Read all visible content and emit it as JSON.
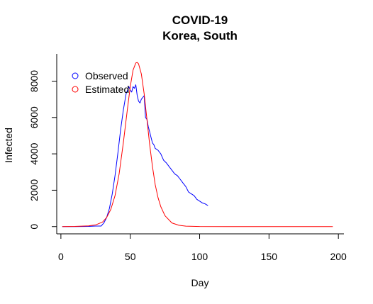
{
  "chart_data": {
    "type": "line",
    "title": "COVID-19",
    "subtitle": "Korea, South",
    "xlabel": "Day",
    "ylabel": "Infected",
    "xlim": [
      -3,
      204
    ],
    "ylim": [
      -400,
      9500
    ],
    "x_ticks": [
      0,
      50,
      100,
      150,
      200
    ],
    "y_ticks": [
      0,
      2000,
      4000,
      6000,
      8000
    ],
    "grid": false,
    "legend_position": "top-left",
    "series": [
      {
        "name": "Observed",
        "color": "#0000ff",
        "x": [
          1,
          10,
          20,
          25,
          29,
          31,
          33,
          35,
          37,
          39,
          41,
          43,
          45,
          47,
          49,
          50,
          51,
          52,
          53,
          54,
          55,
          56,
          57,
          58,
          59,
          60,
          61,
          62,
          63,
          64,
          65,
          66,
          67,
          68,
          69,
          70,
          72,
          74,
          76,
          78,
          80,
          82,
          84,
          86,
          88,
          90,
          92,
          94,
          96,
          98,
          100,
          102,
          104,
          106
        ],
        "y": [
          0,
          0,
          10,
          30,
          30,
          200,
          500,
          1000,
          1800,
          2800,
          4000,
          5300,
          6400,
          7300,
          7700,
          7500,
          7400,
          7700,
          7600,
          7800,
          7200,
          6900,
          6800,
          7000,
          7100,
          7200,
          6000,
          5900,
          5500,
          5200,
          4900,
          4600,
          4500,
          4300,
          4250,
          4200,
          4000,
          3650,
          3500,
          3300,
          3100,
          2900,
          2800,
          2600,
          2400,
          2200,
          1900,
          1800,
          1700,
          1500,
          1400,
          1300,
          1250,
          1150
        ]
      },
      {
        "name": "Estimated",
        "color": "#ff0000",
        "x": [
          1,
          10,
          20,
          25,
          30,
          33,
          36,
          39,
          42,
          45,
          48,
          50,
          52,
          54,
          55,
          56,
          58,
          60,
          62,
          64,
          66,
          68,
          70,
          72,
          75,
          80,
          85,
          90,
          100,
          120,
          150,
          196
        ],
        "y": [
          0,
          10,
          40,
          90,
          250,
          500,
          950,
          1700,
          2900,
          4600,
          6500,
          7700,
          8600,
          9000,
          9030,
          8950,
          8400,
          7300,
          5900,
          4500,
          3300,
          2300,
          1600,
          1100,
          600,
          200,
          70,
          25,
          5,
          0,
          0,
          0
        ]
      }
    ]
  }
}
